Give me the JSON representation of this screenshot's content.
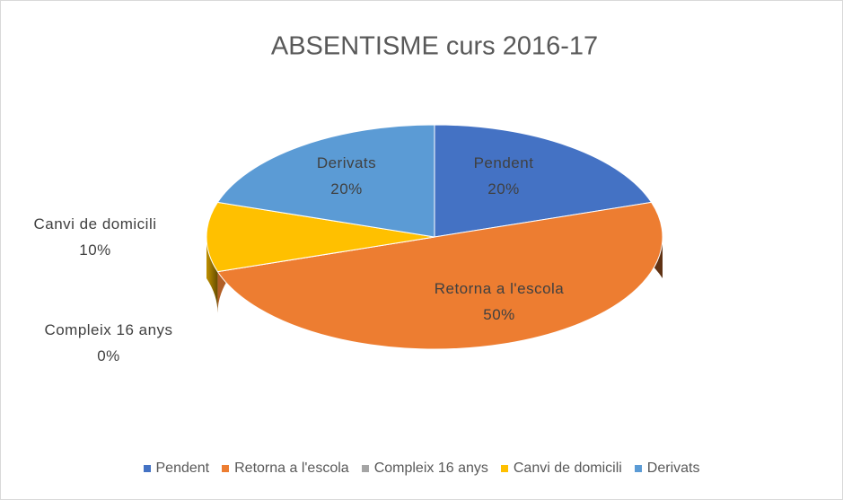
{
  "chart_data": {
    "type": "pie",
    "title": "ABSENTISME curs 2016-17",
    "categories": [
      "Pendent",
      "Retorna a l'escola",
      "Compleix 16 anys",
      "Canvi de domicili",
      "Derivats"
    ],
    "values": [
      20,
      50,
      0,
      10,
      20
    ],
    "value_labels": [
      "20%",
      "50%",
      "0%",
      "10%",
      "20%"
    ],
    "colors": [
      "#4472c4",
      "#ed7d31",
      "#a5a5a5",
      "#ffc000",
      "#5b9bd5"
    ],
    "legend": "bottom"
  }
}
